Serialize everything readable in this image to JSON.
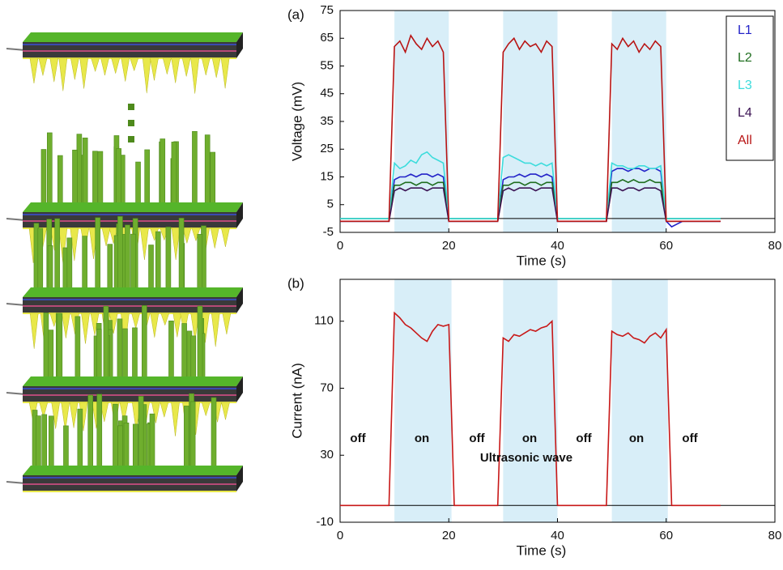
{
  "chart_data": [
    {
      "type": "line",
      "panel_label": "(a)",
      "x_label": "Time (s)",
      "y_label": "Voltage (mV)",
      "xlim": [
        0,
        80
      ],
      "xticks": [
        0,
        20,
        40,
        60,
        80
      ],
      "ylim": [
        -5,
        75
      ],
      "yticks": [
        -5,
        5,
        15,
        25,
        35,
        45,
        55,
        65,
        75
      ],
      "legend": "upper right",
      "shade_color": "#d8eef8",
      "shaded_spans": [
        [
          10,
          20
        ],
        [
          30,
          40
        ],
        [
          50,
          60
        ]
      ],
      "x": [
        0,
        1,
        2,
        3,
        4,
        5,
        6,
        7,
        8,
        9,
        10,
        11,
        12,
        13,
        14,
        15,
        16,
        17,
        18,
        19,
        20,
        21,
        22,
        23,
        24,
        25,
        26,
        27,
        28,
        29,
        30,
        31,
        32,
        33,
        34,
        35,
        36,
        37,
        38,
        39,
        40,
        41,
        42,
        43,
        44,
        45,
        46,
        47,
        48,
        49,
        50,
        51,
        52,
        53,
        54,
        55,
        56,
        57,
        58,
        59,
        60,
        61,
        62,
        63,
        64,
        65,
        66,
        67,
        68,
        69,
        70
      ],
      "series": [
        {
          "name": "L1",
          "color": "#2323c8",
          "values": [
            -1,
            -1,
            -1,
            -1,
            -1,
            -1,
            -1,
            -1,
            -1,
            -1,
            14,
            15,
            15,
            16,
            15,
            16,
            16,
            15,
            16,
            15,
            -1,
            -1,
            -1,
            -1,
            -1,
            -1,
            -1,
            -1,
            -1,
            -1,
            14,
            15,
            15,
            16,
            15,
            16,
            16,
            15,
            16,
            15,
            -1,
            -1,
            -1,
            -1,
            -1,
            -1,
            -1,
            -1,
            -1,
            -1,
            17,
            18,
            18,
            17,
            18,
            18,
            17,
            18,
            18,
            17,
            -1,
            -3,
            -2,
            -1,
            -1,
            -1,
            -1,
            -1,
            -1,
            -1,
            -1
          ]
        },
        {
          "name": "L2",
          "color": "#1f6e1f",
          "values": [
            0,
            0,
            0,
            0,
            0,
            0,
            0,
            0,
            0,
            0,
            12,
            12,
            13,
            13,
            12,
            13,
            13,
            12,
            13,
            13,
            0,
            0,
            0,
            0,
            0,
            0,
            0,
            0,
            0,
            0,
            12,
            12,
            13,
            13,
            12,
            13,
            13,
            12,
            13,
            13,
            0,
            0,
            0,
            0,
            0,
            0,
            0,
            0,
            0,
            0,
            13,
            13,
            14,
            13,
            14,
            13,
            13,
            14,
            13,
            13,
            0,
            0,
            0,
            0,
            0,
            0,
            0,
            0,
            0,
            0,
            0
          ]
        },
        {
          "name": "L3",
          "color": "#3ddcdc",
          "values": [
            0,
            0,
            0,
            0,
            0,
            0,
            0,
            0,
            0,
            0,
            20,
            18,
            19,
            21,
            20,
            23,
            24,
            22,
            21,
            20,
            0,
            0,
            0,
            0,
            0,
            0,
            0,
            0,
            0,
            0,
            22,
            23,
            22,
            21,
            20,
            20,
            19,
            20,
            19,
            20,
            0,
            0,
            0,
            0,
            0,
            0,
            0,
            0,
            0,
            0,
            20,
            19,
            19,
            18,
            18,
            19,
            19,
            18,
            18,
            19,
            0,
            0,
            0,
            0,
            0,
            0,
            0,
            0,
            0,
            0,
            0
          ]
        },
        {
          "name": "L4",
          "color": "#3c1454",
          "values": [
            -1,
            -1,
            -1,
            -1,
            -1,
            -1,
            -1,
            -1,
            -1,
            -1,
            10,
            11,
            10,
            11,
            11,
            11,
            10,
            11,
            11,
            11,
            -1,
            -1,
            -1,
            -1,
            -1,
            -1,
            -1,
            -1,
            -1,
            -1,
            10,
            11,
            10,
            11,
            11,
            11,
            10,
            11,
            11,
            11,
            -1,
            -1,
            -1,
            -1,
            -1,
            -1,
            -1,
            -1,
            -1,
            -1,
            11,
            11,
            10,
            11,
            11,
            10,
            11,
            11,
            11,
            10,
            -1,
            -1,
            -1,
            -1,
            -1,
            -1,
            -1,
            -1,
            -1,
            -1,
            -1
          ]
        },
        {
          "name": "All",
          "color": "#b81414",
          "values": [
            -1,
            -1,
            -1,
            -1,
            -1,
            -1,
            -1,
            -1,
            -1,
            -1,
            62,
            64,
            60,
            66,
            63,
            61,
            65,
            62,
            64,
            60,
            -1,
            -1,
            -1,
            -1,
            -1,
            -1,
            -1,
            -1,
            -1,
            -1,
            60,
            63,
            65,
            61,
            64,
            62,
            63,
            60,
            64,
            62,
            -1,
            -1,
            -1,
            -1,
            -1,
            -1,
            -1,
            -1,
            -1,
            -1,
            63,
            61,
            65,
            62,
            64,
            60,
            63,
            61,
            64,
            62,
            -1,
            -1,
            -1,
            -1,
            -1,
            -1,
            -1,
            -1,
            -1,
            -1,
            -1
          ]
        }
      ]
    },
    {
      "type": "line",
      "panel_label": "(b)",
      "x_label": "Time (s)",
      "y_label": "Current (nA)",
      "xlim": [
        0,
        80
      ],
      "xticks": [
        0,
        20,
        40,
        60,
        80
      ],
      "ylim": [
        -10,
        135
      ],
      "yticks": [
        -10,
        30,
        70,
        110
      ],
      "shade_color": "#d8eef8",
      "shaded_spans": [
        [
          10,
          20.5
        ],
        [
          30,
          40
        ],
        [
          50,
          60.3
        ]
      ],
      "color": "#c81818",
      "annotations": [
        "off",
        "on",
        "off",
        "on",
        "off",
        "on",
        "off",
        "Ultrasonic wave"
      ],
      "x": [
        0,
        1,
        2,
        3,
        4,
        5,
        6,
        7,
        8,
        9,
        10,
        11,
        12,
        13,
        14,
        15,
        16,
        17,
        18,
        19,
        20,
        21,
        22,
        23,
        24,
        25,
        26,
        27,
        28,
        29,
        30,
        31,
        32,
        33,
        34,
        35,
        36,
        37,
        38,
        39,
        40,
        41,
        42,
        43,
        44,
        45,
        46,
        47,
        48,
        49,
        50,
        51,
        52,
        53,
        54,
        55,
        56,
        57,
        58,
        59,
        60,
        61,
        62,
        63,
        64,
        65,
        66,
        67,
        68,
        69,
        70
      ],
      "values": [
        0,
        0,
        0,
        0,
        0,
        0,
        0,
        0,
        0,
        0,
        115,
        112,
        108,
        106,
        103,
        100,
        98,
        104,
        108,
        107,
        108,
        0,
        0,
        0,
        0,
        0,
        0,
        0,
        0,
        0,
        100,
        98,
        102,
        101,
        103,
        105,
        104,
        106,
        107,
        110,
        0,
        0,
        0,
        0,
        0,
        0,
        0,
        0,
        0,
        0,
        104,
        102,
        101,
        103,
        100,
        99,
        97,
        101,
        103,
        100,
        105,
        0,
        0,
        0,
        0,
        0,
        0,
        0,
        0,
        0,
        0
      ]
    }
  ]
}
